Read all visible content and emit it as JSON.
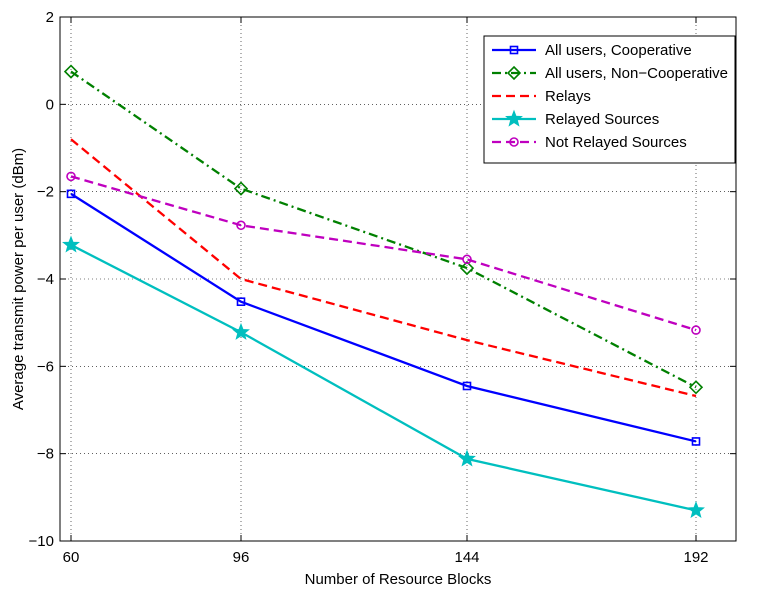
{
  "chart_data": {
    "type": "line",
    "title": "",
    "xlabel": "Number of Resource Blocks",
    "ylabel": "Average transmit power per user (dBm)",
    "x": [
      60,
      96,
      144,
      192
    ],
    "xticks": [
      "60",
      "96",
      "144",
      "192"
    ],
    "yticks": [
      "2",
      "0",
      "−2",
      "−4",
      "−6",
      "−8",
      "−10"
    ],
    "ylim": [
      -10,
      2
    ],
    "grid": true,
    "legend_position": "top-right",
    "series": [
      {
        "name": "All users, Cooperative",
        "values": [
          -2.05,
          -4.52,
          -6.45,
          -7.72
        ],
        "color": "#0000ff",
        "style": "solid",
        "marker": "square"
      },
      {
        "name": "All users, Non−Cooperative",
        "values": [
          0.75,
          -1.93,
          -3.75,
          -6.48
        ],
        "color": "#008000",
        "style": "dashdot",
        "marker": "diamond"
      },
      {
        "name": "Relays",
        "values": [
          -0.8,
          -4.0,
          -5.4,
          -6.68
        ],
        "color": "#ff0000",
        "style": "dashed",
        "marker": "none"
      },
      {
        "name": "Relayed Sources",
        "values": [
          -3.22,
          -5.22,
          -8.12,
          -9.3
        ],
        "color": "#00bfbf",
        "style": "solid",
        "marker": "star"
      },
      {
        "name": "Not Relayed Sources",
        "values": [
          -1.65,
          -2.77,
          -3.55,
          -5.17
        ],
        "color": "#bf00bf",
        "style": "dashed",
        "marker": "circle"
      }
    ]
  }
}
